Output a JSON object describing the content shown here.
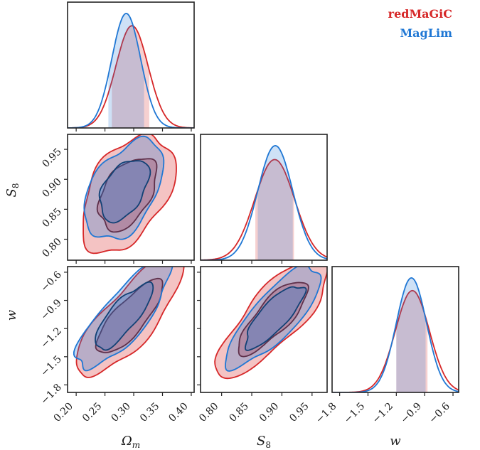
{
  "chart_data": {
    "type": "corner",
    "parameters": [
      {
        "key": "om",
        "label": "Ω",
        "sub": "m",
        "ticks": [
          0.2,
          0.25,
          0.3,
          0.35,
          0.4
        ],
        "tick_labels": [
          "0.20",
          "0.25",
          "0.30",
          "0.35",
          "0.40"
        ],
        "range": [
          0.185,
          0.405
        ]
      },
      {
        "key": "s8",
        "label": "S",
        "sub": "8",
        "ticks": [
          0.8,
          0.85,
          0.9,
          0.95
        ],
        "tick_labels": [
          "0.80",
          "0.85",
          "0.90",
          "0.95"
        ],
        "range": [
          0.765,
          0.975
        ]
      },
      {
        "key": "w",
        "label": "w",
        "sub": "",
        "ticks": [
          -1.8,
          -1.5,
          -1.2,
          -0.9,
          -0.6
        ],
        "tick_labels": [
          "−1.8",
          "−1.5",
          "−1.2",
          "−0.9",
          "−0.6"
        ],
        "range": [
          -1.88,
          -0.54
        ]
      }
    ],
    "series": [
      {
        "name": "redMaGiC",
        "color": "#d62728",
        "marginals": {
          "om": {
            "mean": 0.297,
            "sigma": 0.028,
            "interval": [
              0.262,
              0.327
            ]
          },
          "s8": {
            "mean": 0.888,
            "sigma": 0.033,
            "interval": [
              0.856,
              0.92
            ]
          },
          "w": {
            "mean": -1.03,
            "sigma": 0.18,
            "interval": [
              -1.2,
              -0.87
            ]
          }
        },
        "pairs": [
          {
            "x": "om",
            "y": "s8",
            "mx": 0.289,
            "my": 0.876,
            "sx": 0.033,
            "sy": 0.04,
            "rho": 0.45
          },
          {
            "x": "om",
            "y": "w",
            "mx": 0.293,
            "my": -1.08,
            "sx": 0.038,
            "sy": 0.26,
            "rho": 0.8
          },
          {
            "x": "s8",
            "y": "w",
            "mx": 0.885,
            "my": -1.08,
            "sx": 0.038,
            "sy": 0.26,
            "rho": 0.8
          }
        ]
      },
      {
        "name": "MagLim",
        "color": "#1f77d4",
        "marginals": {
          "om": {
            "mean": 0.287,
            "sigma": 0.025,
            "interval": [
              0.256,
              0.318
            ]
          },
          "s8": {
            "mean": 0.889,
            "sigma": 0.029,
            "interval": [
              0.86,
              0.918
            ]
          },
          "w": {
            "mean": -1.04,
            "sigma": 0.16,
            "interval": [
              -1.2,
              -0.89
            ]
          }
        },
        "pairs": [
          {
            "x": "om",
            "y": "s8",
            "mx": 0.283,
            "my": 0.882,
            "sx": 0.028,
            "sy": 0.034,
            "rho": 0.45
          },
          {
            "x": "om",
            "y": "w",
            "mx": 0.282,
            "my": -1.07,
            "sx": 0.033,
            "sy": 0.23,
            "rho": 0.8
          },
          {
            "x": "s8",
            "y": "w",
            "mx": 0.887,
            "my": -1.07,
            "sx": 0.032,
            "sy": 0.22,
            "rho": 0.8
          }
        ]
      }
    ],
    "legend": {
      "position": "top-right"
    },
    "grid": false
  }
}
